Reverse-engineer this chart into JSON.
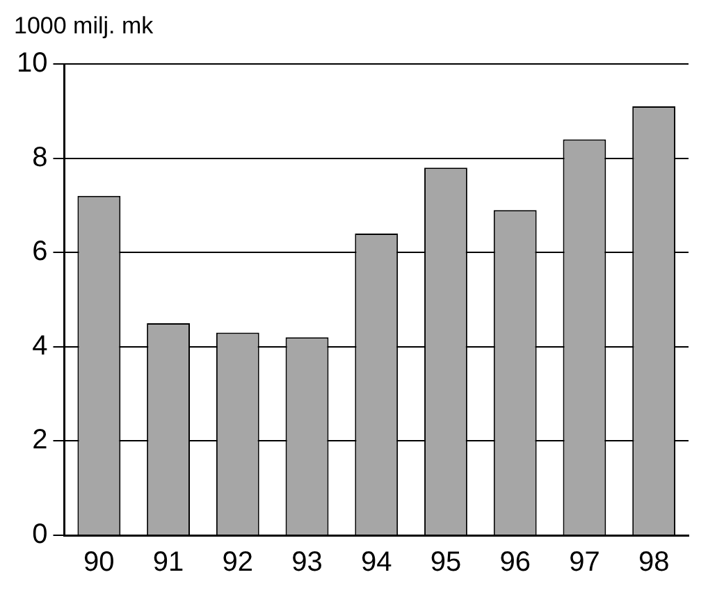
{
  "chart_data": {
    "type": "bar",
    "ylabel": "1000 milj. mk",
    "categories": [
      "90",
      "91",
      "92",
      "93",
      "94",
      "95",
      "96",
      "97",
      "98"
    ],
    "values": [
      7.2,
      4.5,
      4.3,
      4.2,
      6.4,
      7.8,
      6.9,
      8.4,
      9.1
    ],
    "color": "#a6a6a6",
    "ylim": [
      0,
      10
    ],
    "yticks": [
      0,
      2,
      4,
      6,
      8,
      10
    ],
    "grid": "y"
  }
}
